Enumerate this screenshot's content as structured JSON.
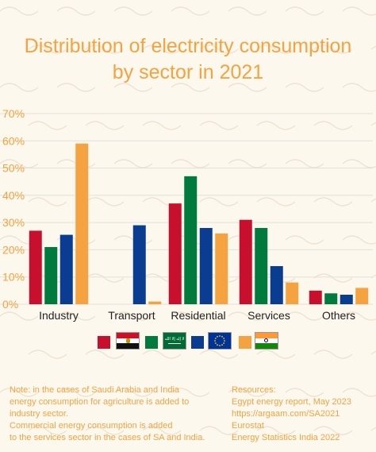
{
  "title_line1": "Distribution of electricity consumption",
  "title_line2": "by sector in 2021",
  "chart_data": {
    "type": "bar",
    "categories": [
      "Industry",
      "Transport",
      "Residential",
      "Services",
      "Others"
    ],
    "y_ticks": [
      "0%",
      "10%",
      "20%",
      "30%",
      "40%",
      "50%",
      "60%",
      "70%"
    ],
    "ylim": [
      0,
      70
    ],
    "grid": true,
    "series": [
      {
        "color": "#c8102e",
        "values": [
          27,
          null,
          37,
          31,
          5
        ]
      },
      {
        "color": "#007a3d",
        "values": [
          21,
          null,
          47,
          28,
          4
        ]
      },
      {
        "color": "#0a3d91",
        "values": [
          25.5,
          29,
          28,
          14,
          3.5
        ]
      },
      {
        "color": "#f4a340",
        "values": [
          59,
          1,
          26,
          8,
          6
        ]
      }
    ]
  },
  "legend": {
    "colors": [
      "#c8102e",
      "#007a3d",
      "#0a3d91",
      "#f4a340"
    ],
    "flags": [
      "egypt-flag",
      "saudi-arabia-flag",
      "eu-flag",
      "india-flag"
    ]
  },
  "note": {
    "line1": "Note: in the cases of Saudi Arabia and India",
    "line2": "energy consumption for agriculture is added to",
    "line3": "industry sector.",
    "line4": "Commercial energy consumption is added",
    "line5": "to the services sector in the cases of SA and India."
  },
  "resources": {
    "heading": "Resources:",
    "line1": "Egypt energy report, May 2023",
    "line2": "https://argaam.com/SA2021",
    "line3": "Eurostat",
    "line4": "Energy Statistics India 2022"
  },
  "saudi_flag_text": "لا إله إلا الله"
}
